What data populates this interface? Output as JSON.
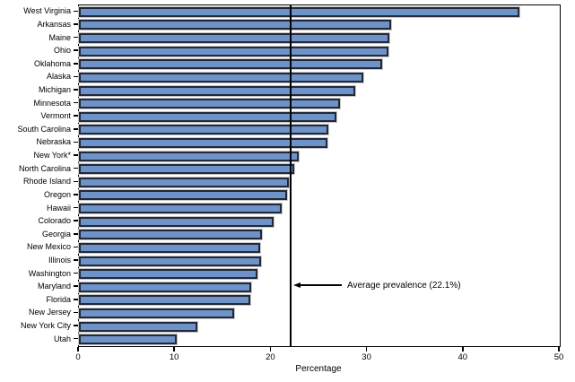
{
  "chart_data": {
    "type": "bar",
    "orientation": "horizontal",
    "title": "",
    "xlabel": "Percentage",
    "ylabel": "",
    "xlim": [
      0,
      50
    ],
    "xticks": [
      0,
      10,
      20,
      30,
      40,
      50
    ],
    "grid": false,
    "legend": false,
    "bar_color": "#6e93c9",
    "bar_border_color": "#232938",
    "categories": [
      "West Virginia",
      "Arkansas",
      "Maine",
      "Ohio",
      "Oklahoma",
      "Alaska",
      "Michigan",
      "Minnesota",
      "Vermont",
      "South Carolina",
      "Nebraska",
      "New York*",
      "North Carolina",
      "Rhode Island",
      "Oregon",
      "Hawaii",
      "Colorado",
      "Georgia",
      "New Mexico",
      "Illinois",
      "Washington",
      "Maryland",
      "Florida",
      "New Jersey",
      "New York City",
      "Utah"
    ],
    "values": [
      45.8,
      32.5,
      32.3,
      32.2,
      31.5,
      29.6,
      28.7,
      27.1,
      26.8,
      25.9,
      25.8,
      22.9,
      22.4,
      21.8,
      21.6,
      21.1,
      20.2,
      19.0,
      18.8,
      18.9,
      18.6,
      17.9,
      17.8,
      16.1,
      12.3,
      10.2
    ],
    "average_line": {
      "value": 22.1,
      "label": "Average prevalence (22.1%)"
    }
  }
}
